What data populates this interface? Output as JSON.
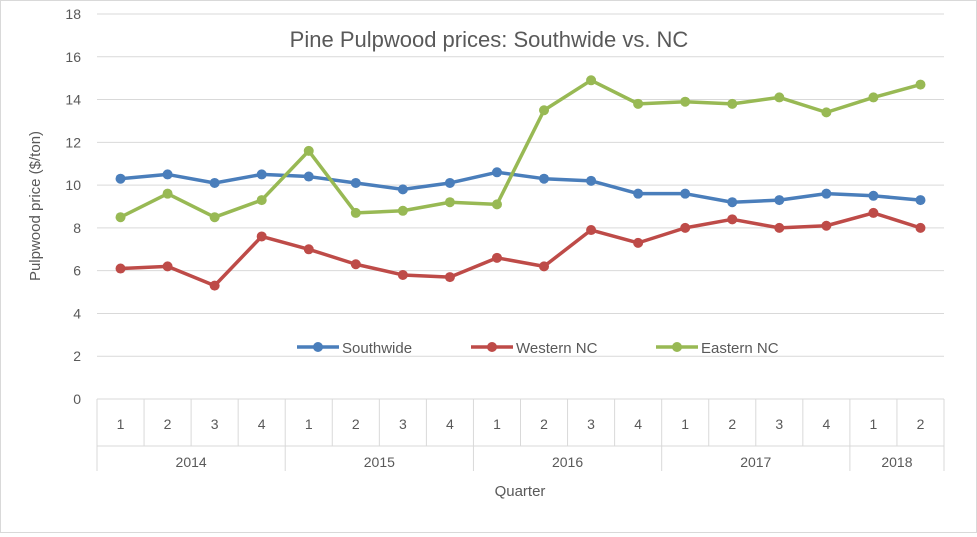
{
  "chart_data": {
    "type": "line",
    "title": "Pine Pulpwood prices: Southwide vs. NC",
    "xlabel": "Quarter",
    "ylabel": "Pulpwood price ($/ton)",
    "ylim": [
      0,
      18
    ],
    "yticks": [
      0,
      2,
      4,
      6,
      8,
      10,
      12,
      14,
      16,
      18
    ],
    "grid": true,
    "legend": "inside-bottom-center",
    "categories": [
      "1",
      "2",
      "3",
      "4",
      "1",
      "2",
      "3",
      "4",
      "1",
      "2",
      "3",
      "4",
      "1",
      "2",
      "3",
      "4",
      "1",
      "2"
    ],
    "years": [
      {
        "label": "2014",
        "quarters": 4
      },
      {
        "label": "2015",
        "quarters": 4
      },
      {
        "label": "2016",
        "quarters": 4
      },
      {
        "label": "2017",
        "quarters": 4
      },
      {
        "label": "2018",
        "quarters": 2
      }
    ],
    "series": [
      {
        "name": "Southwide",
        "color": "#4a7ebb",
        "values": [
          10.3,
          10.5,
          10.1,
          10.5,
          10.4,
          10.1,
          9.8,
          10.1,
          10.6,
          10.3,
          10.2,
          9.6,
          9.6,
          9.2,
          9.3,
          9.6,
          9.5,
          9.3
        ]
      },
      {
        "name": "Western NC",
        "color": "#be4b48",
        "values": [
          6.1,
          6.2,
          5.3,
          7.6,
          7.0,
          6.3,
          5.8,
          5.7,
          6.6,
          6.2,
          7.9,
          7.3,
          8.0,
          8.4,
          8.0,
          8.1,
          8.7,
          8.0
        ]
      },
      {
        "name": "Eastern NC",
        "color": "#98b954",
        "values": [
          8.5,
          9.6,
          8.5,
          9.3,
          11.6,
          8.7,
          8.8,
          9.2,
          9.1,
          13.5,
          14.9,
          13.8,
          13.9,
          13.8,
          14.1,
          13.4,
          14.1,
          14.7
        ]
      }
    ]
  }
}
